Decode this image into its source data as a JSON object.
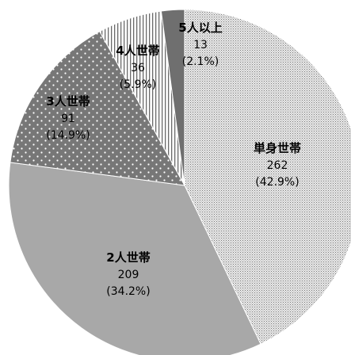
{
  "chart_data": {
    "type": "pie",
    "title": "",
    "categories": [
      "単身世帯",
      "2人世帯",
      "3人世帯",
      "4人世帯",
      "5人以上"
    ],
    "values": [
      262,
      209,
      91,
      36,
      13
    ],
    "percents": [
      "(42.9%)",
      "(34.2%)",
      "(14.9%)",
      "(5.9%)",
      "(2.1%)"
    ],
    "value_labels": [
      "262",
      "209",
      "91",
      "36",
      "13"
    ],
    "start": "12 o'clock",
    "direction": "clockwise",
    "legend": "none",
    "fills": [
      "dense-dot-gray",
      "solid-gray",
      "dark-gray-white-dots",
      "vertical-lines",
      "dark-gray"
    ],
    "colors": {
      "slice1_base": "#e8e8e8",
      "slice1_dot": "#7a7a7a",
      "slice2": "#a8a8a8",
      "slice3_base": "#777777",
      "slice3_dot": "#ffffff",
      "slice4_base": "#ffffff",
      "slice4_line": "#6a6a6a",
      "slice5": "#6f6f6f",
      "edge": "#ffffff"
    }
  }
}
